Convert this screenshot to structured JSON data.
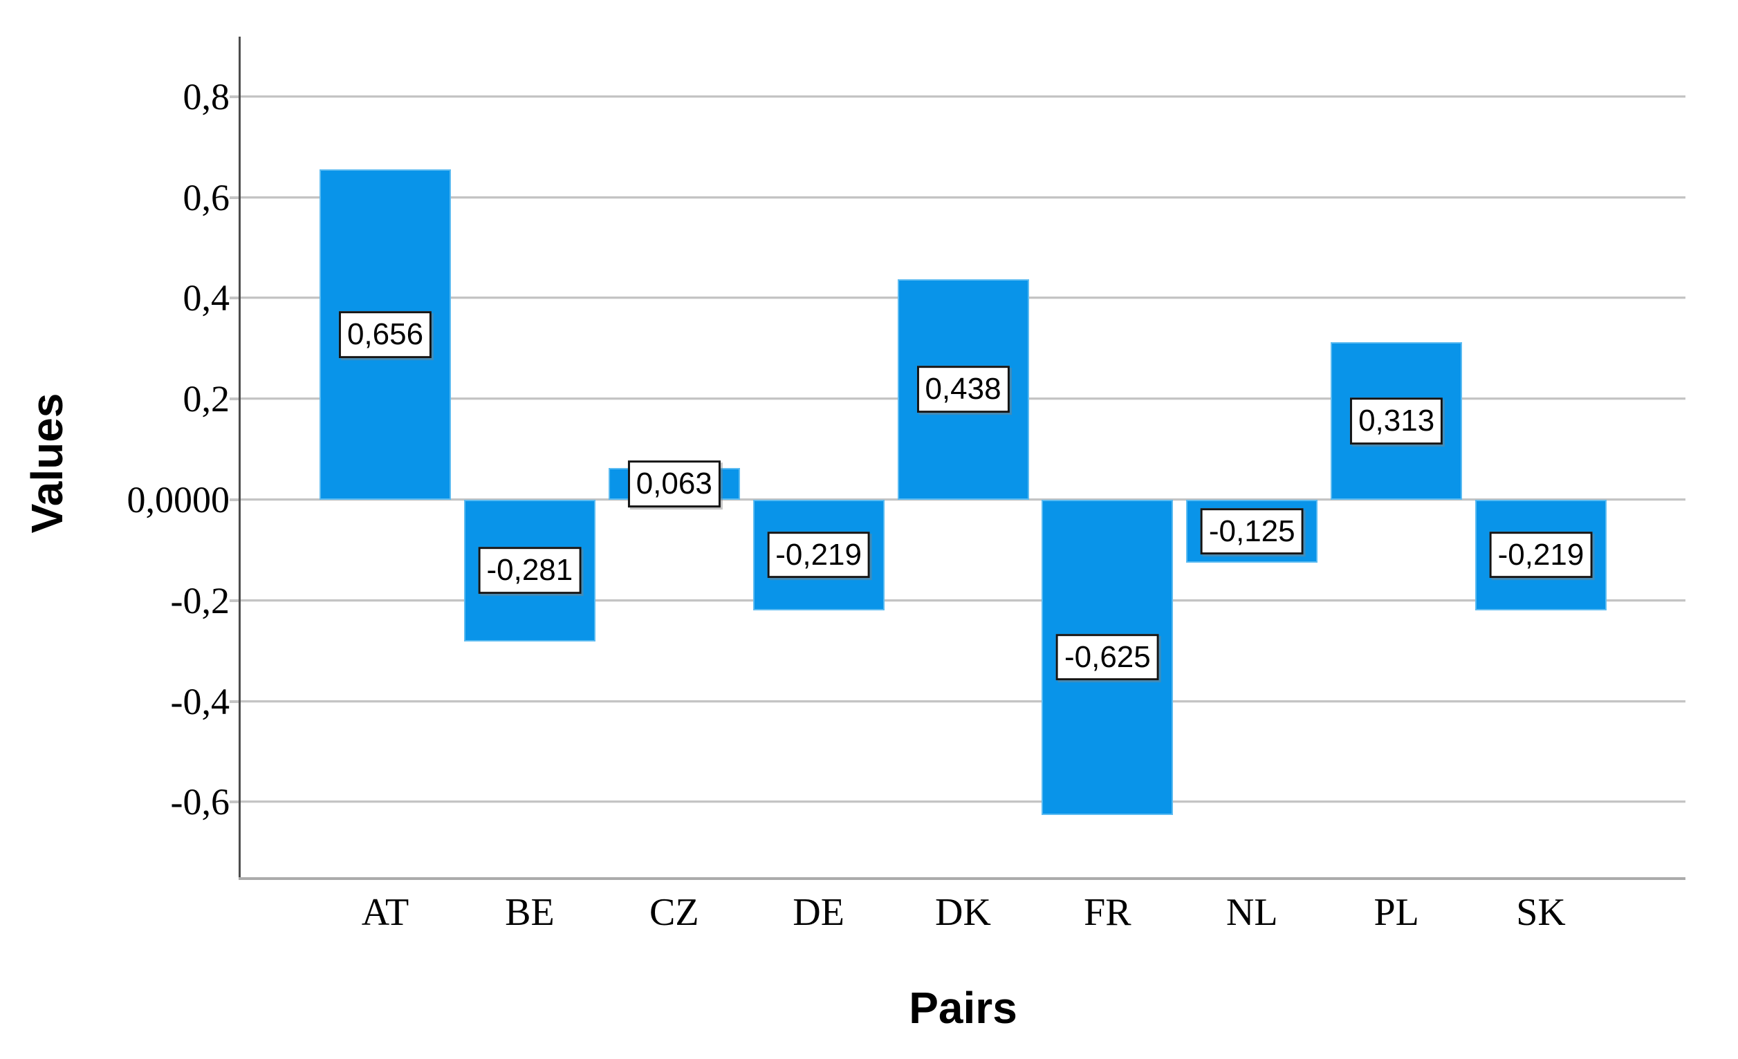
{
  "chart_data": {
    "type": "bar",
    "title": "",
    "xlabel": "Pairs",
    "ylabel": "Values",
    "categories": [
      "AT",
      "BE",
      "CZ",
      "DE",
      "DK",
      "FR",
      "NL",
      "PL",
      "SK"
    ],
    "values": [
      0.656,
      -0.281,
      0.063,
      -0.219,
      0.438,
      -0.625,
      -0.125,
      0.313,
      -0.219
    ],
    "bar_labels": [
      "0,656",
      "-0,281",
      "0,063",
      "-0,219",
      "0,438",
      "-0,625",
      "-0,125",
      "0,313",
      "-0,219"
    ],
    "decimal_separator": ",",
    "y_ticks": [
      {
        "value": 0.8,
        "label": "0,8"
      },
      {
        "value": 0.6,
        "label": "0,6"
      },
      {
        "value": 0.4,
        "label": "0,4"
      },
      {
        "value": 0.2,
        "label": "0,2"
      },
      {
        "value": 0.0,
        "label": "0,0000"
      },
      {
        "value": -0.2,
        "label": "-0,2"
      },
      {
        "value": -0.4,
        "label": "-0,4"
      },
      {
        "value": -0.6,
        "label": "-0,6"
      }
    ],
    "ylim": [
      -0.75,
      0.92
    ],
    "grid": true,
    "legend": "none",
    "colors": {
      "bar_fill": "#0994e9",
      "bar_edge": "#5cbbf1",
      "gridline": "#c4c4c4",
      "y_axis_line": "#4d4d4d",
      "x_axis_line": "#ababab",
      "label_box_bg": "#ffffff",
      "label_box_border": "#141414",
      "text": "#000000"
    }
  }
}
